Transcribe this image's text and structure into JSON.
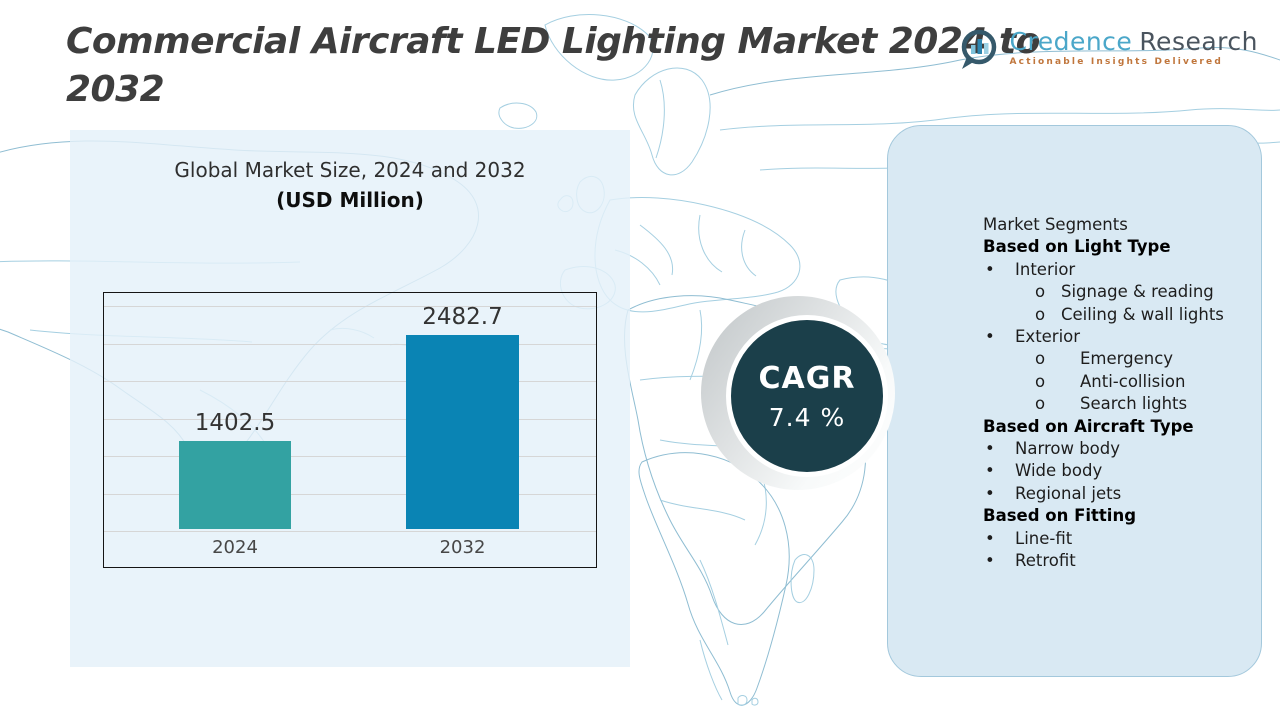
{
  "header": {
    "title": "Commercial Aircraft LED Lighting Market 2024 to 2032"
  },
  "logo": {
    "name_primary": "Credence",
    "name_secondary": "Research",
    "tagline": "Actionable Insights Delivered",
    "colors": {
      "primary": "#4ba7c9",
      "secondary": "#4a545e",
      "tagline": "#c0763c",
      "icon": "#35596b"
    }
  },
  "chart_panel": {
    "heading_line1": "Global Market Size, 2024 and 2032",
    "heading_line2": "(USD Million)"
  },
  "chart_data": {
    "type": "bar",
    "title": "Global Market Size, 2024 and 2032 (USD Million)",
    "categories": [
      "2024",
      "2032"
    ],
    "values": [
      1402.5,
      2482.7
    ],
    "unit": "USD Million",
    "bar_colors": [
      "#33a2a2",
      "#0a84b4"
    ],
    "ylim": [
      500,
      2900
    ],
    "grid": true,
    "legend": false
  },
  "cagr": {
    "label": "CAGR",
    "value": "7.4 %",
    "circle_color": "#1b3f4a",
    "text_color": "#ffffff"
  },
  "segments_panel": {
    "markers": {
      "dot": "•",
      "circle": "o"
    },
    "lines": [
      {
        "text": "Market Segments",
        "style": "plain"
      },
      {
        "text": "Based on Light Type",
        "style": "header"
      },
      {
        "text": "Interior",
        "style": "bullet"
      },
      {
        "text": "Signage & reading",
        "style": "sub1"
      },
      {
        "text": "Ceiling & wall lights",
        "style": "sub1"
      },
      {
        "text": "Exterior",
        "style": "bullet"
      },
      {
        "text": "Emergency",
        "style": "sub2"
      },
      {
        "text": "Anti-collision",
        "style": "sub2"
      },
      {
        "text": "Search lights",
        "style": "sub2"
      },
      {
        "text": "Based on Aircraft Type",
        "style": "header"
      },
      {
        "text": "Narrow body",
        "style": "bullet"
      },
      {
        "text": "Wide body",
        "style": "bullet"
      },
      {
        "text": "Regional jets",
        "style": "bullet"
      },
      {
        "text": "Based on Fitting",
        "style": "header"
      },
      {
        "text": "Line-fit",
        "style": "bullet"
      },
      {
        "text": "Retrofit",
        "style": "bullet"
      }
    ]
  }
}
